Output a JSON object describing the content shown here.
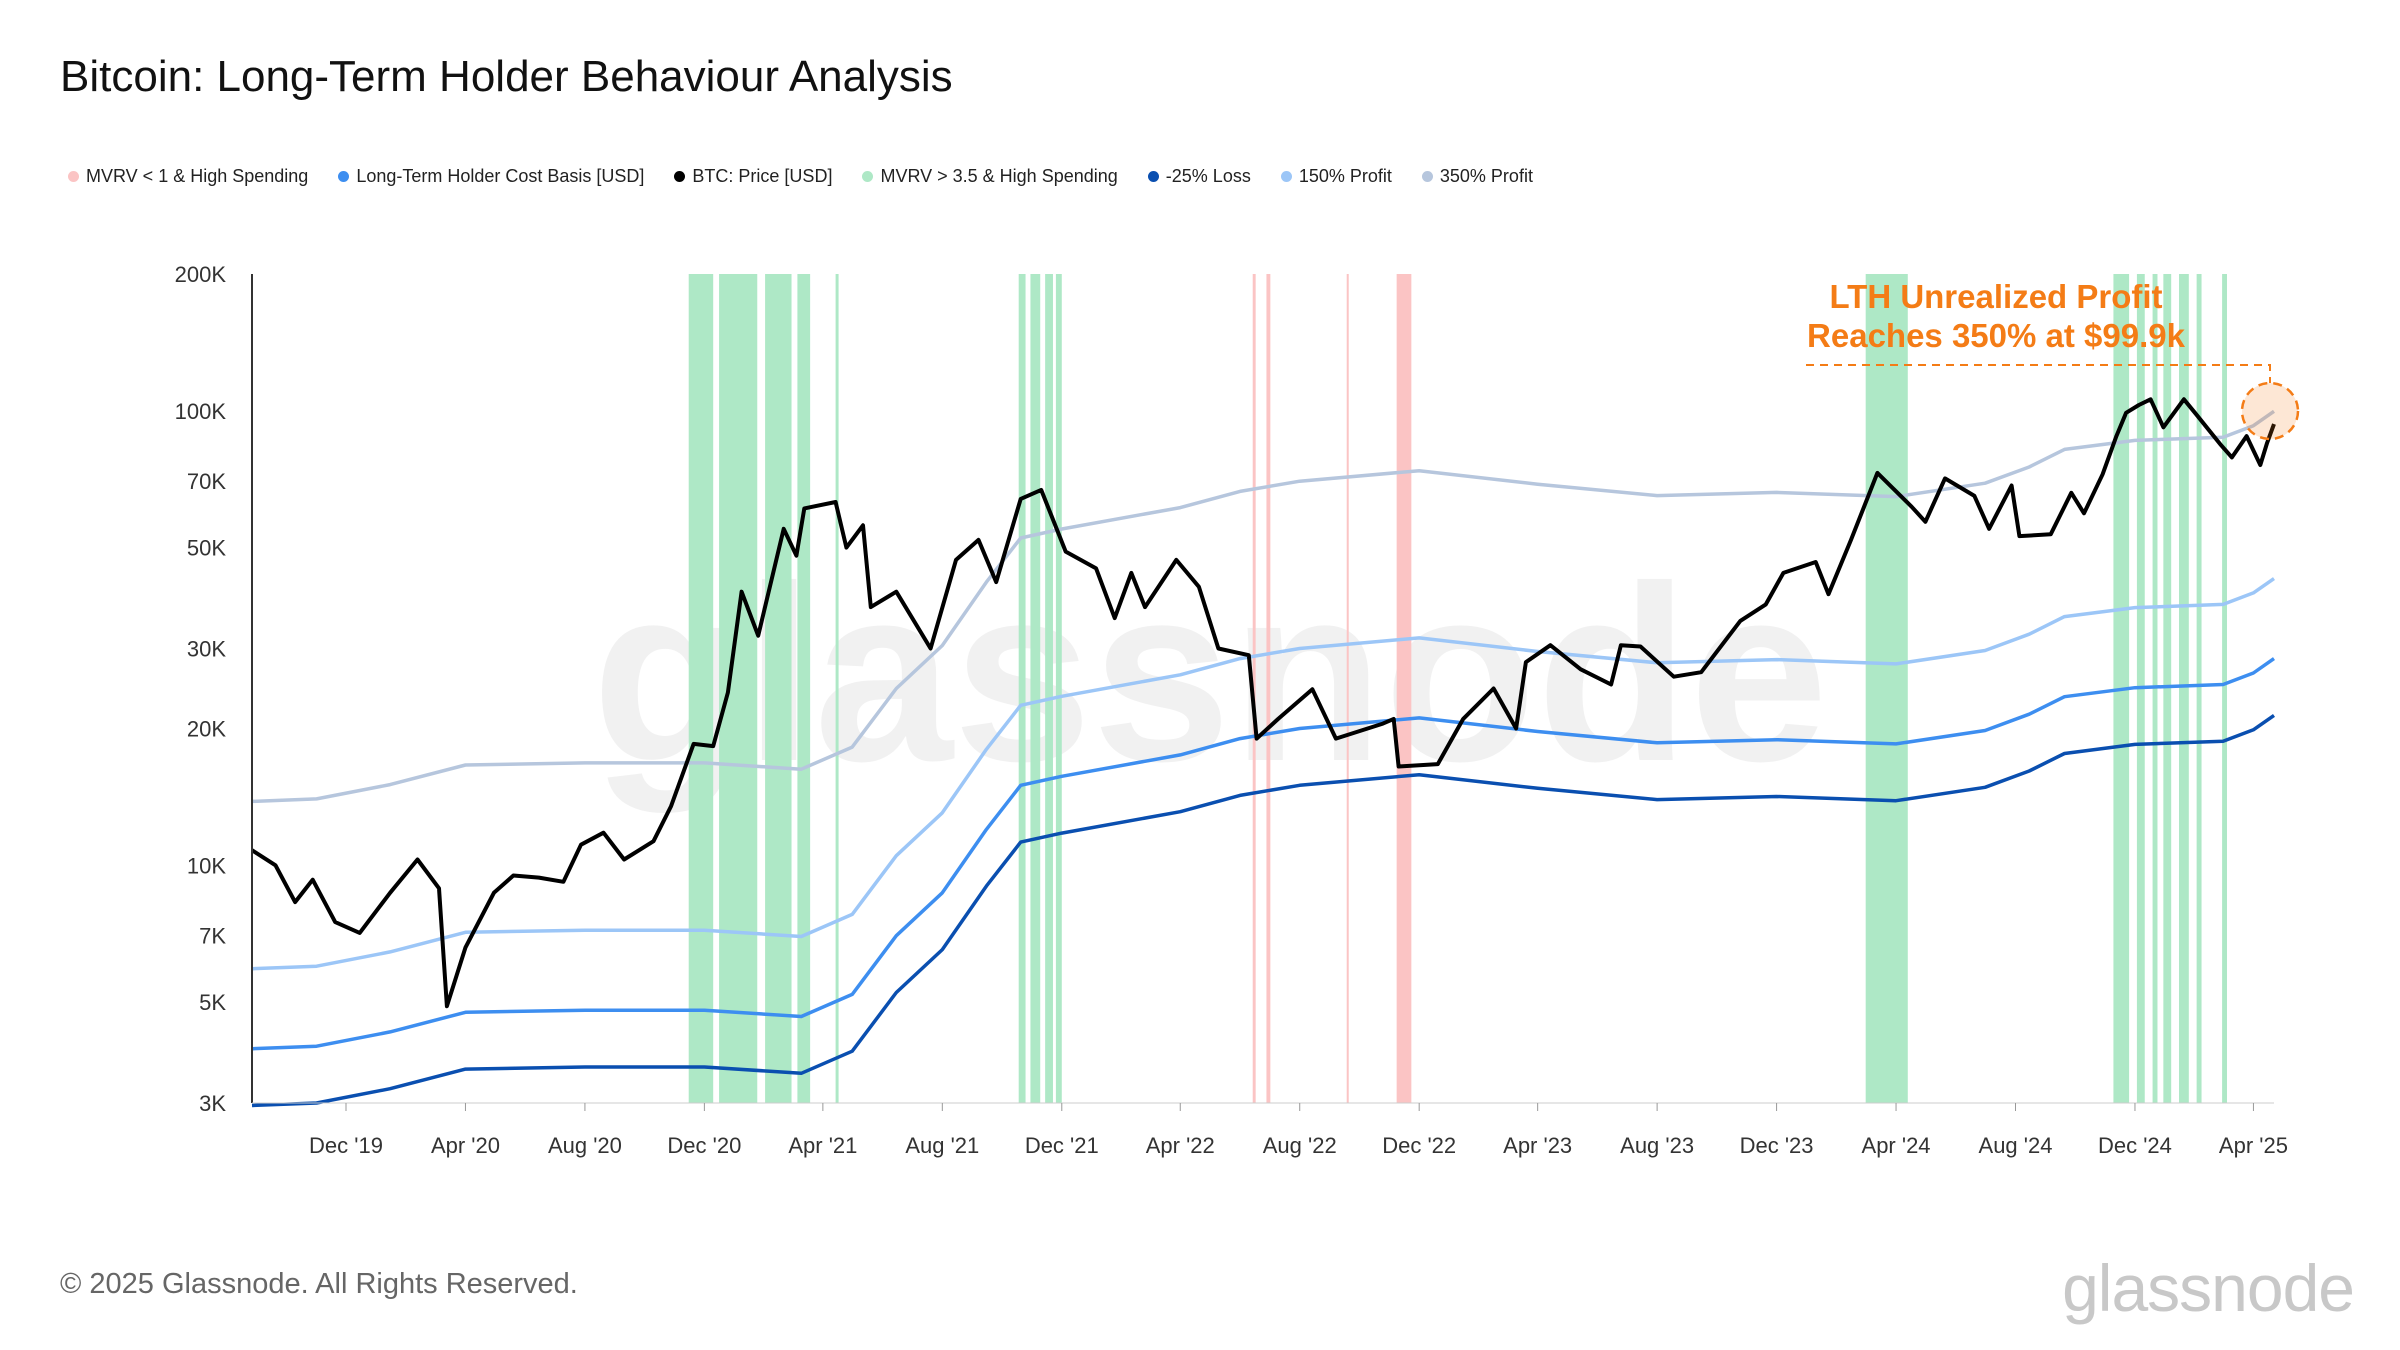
{
  "header": {
    "title": "Bitcoin: Long-Term Holder Behaviour Analysis"
  },
  "legend": [
    {
      "label": "MVRV < 1 & High Spending",
      "color": "#fbc4c4"
    },
    {
      "label": "Long-Term Holder Cost Basis [USD]",
      "color": "#3d8ef0"
    },
    {
      "label": "BTC: Price [USD]",
      "color": "#000000"
    },
    {
      "label": "MVRV > 3.5 & High Spending",
      "color": "#aee8c6"
    },
    {
      "label": "-25% Loss",
      "color": "#0a4fb0"
    },
    {
      "label": "150% Profit",
      "color": "#9cc6f7"
    },
    {
      "label": "350% Profit",
      "color": "#b6c6dd"
    }
  ],
  "annotation": {
    "line1": "LTH Unrealized Profit",
    "line2": "Reaches 350% at $99.9k",
    "color": "#f47c16"
  },
  "watermark": "glassnode",
  "footer": {
    "copyright": "© 2025 Glassnode. All Rights Reserved.",
    "logo": "glassnode"
  },
  "chart_data": {
    "type": "line",
    "title": "Bitcoin: Long-Term Holder Behaviour Analysis",
    "y_scale": "log",
    "ylim": [
      3000,
      200000
    ],
    "xlim": [
      "2019-08-27",
      "2025-04-22"
    ],
    "grid": false,
    "legend_position": "top",
    "y_ticks": [
      {
        "v": 3000,
        "label": "3K"
      },
      {
        "v": 5000,
        "label": "5K"
      },
      {
        "v": 7000,
        "label": "7K"
      },
      {
        "v": 10000,
        "label": "10K"
      },
      {
        "v": 20000,
        "label": "20K"
      },
      {
        "v": 30000,
        "label": "30K"
      },
      {
        "v": 50000,
        "label": "50K"
      },
      {
        "v": 70000,
        "label": "70K"
      },
      {
        "v": 100000,
        "label": "100K"
      },
      {
        "v": 200000,
        "label": "200K"
      }
    ],
    "x_ticks": [
      {
        "d": "2019-12-01",
        "label": "Dec '19"
      },
      {
        "d": "2020-04-01",
        "label": "Apr '20"
      },
      {
        "d": "2020-08-01",
        "label": "Aug '20"
      },
      {
        "d": "2020-12-01",
        "label": "Dec '20"
      },
      {
        "d": "2021-04-01",
        "label": "Apr '21"
      },
      {
        "d": "2021-08-01",
        "label": "Aug '21"
      },
      {
        "d": "2021-12-01",
        "label": "Dec '21"
      },
      {
        "d": "2022-04-01",
        "label": "Apr '22"
      },
      {
        "d": "2022-08-01",
        "label": "Aug '22"
      },
      {
        "d": "2022-12-01",
        "label": "Dec '22"
      },
      {
        "d": "2023-04-01",
        "label": "Apr '23"
      },
      {
        "d": "2023-08-01",
        "label": "Aug '23"
      },
      {
        "d": "2023-12-01",
        "label": "Dec '23"
      },
      {
        "d": "2024-04-01",
        "label": "Apr '24"
      },
      {
        "d": "2024-08-01",
        "label": "Aug '24"
      },
      {
        "d": "2024-12-01",
        "label": "Dec '24"
      },
      {
        "d": "2025-04-01",
        "label": "Apr '25"
      }
    ],
    "cost_basis": {
      "name": "Long-Term Holder Cost Basis [USD]",
      "points": [
        [
          "2019-08-27",
          3950
        ],
        [
          "2019-11-01",
          4000
        ],
        [
          "2020-01-15",
          4300
        ],
        [
          "2020-04-01",
          4750
        ],
        [
          "2020-08-01",
          4800
        ],
        [
          "2020-12-01",
          4800
        ],
        [
          "2021-03-10",
          4650
        ],
        [
          "2021-05-01",
          5200
        ],
        [
          "2021-06-15",
          7000
        ],
        [
          "2021-08-01",
          8700
        ],
        [
          "2021-09-15",
          12000
        ],
        [
          "2021-10-20",
          15000
        ],
        [
          "2021-12-01",
          15700
        ],
        [
          "2022-04-01",
          17500
        ],
        [
          "2022-06-01",
          19000
        ],
        [
          "2022-08-01",
          20000
        ],
        [
          "2022-12-01",
          21100
        ],
        [
          "2023-04-01",
          19700
        ],
        [
          "2023-08-01",
          18600
        ],
        [
          "2023-12-01",
          18900
        ],
        [
          "2024-04-01",
          18500
        ],
        [
          "2024-07-01",
          19800
        ],
        [
          "2024-08-15",
          21500
        ],
        [
          "2024-09-20",
          23500
        ],
        [
          "2024-12-01",
          24600
        ],
        [
          "2025-03-01",
          25000
        ],
        [
          "2025-04-01",
          26500
        ],
        [
          "2025-04-22",
          28500
        ]
      ]
    },
    "bands": [
      {
        "name": "-25% Loss",
        "multiplier_of_cost_basis": 0.75
      },
      {
        "name": "150% Profit",
        "multiplier_of_cost_basis": 1.5
      },
      {
        "name": "350% Profit",
        "multiplier_of_cost_basis": 3.5
      }
    ],
    "price": {
      "name": "BTC: Price [USD]",
      "points": [
        [
          "2019-08-27",
          10800
        ],
        [
          "2019-09-20",
          10000
        ],
        [
          "2019-10-10",
          8300
        ],
        [
          "2019-10-28",
          9300
        ],
        [
          "2019-11-20",
          7500
        ],
        [
          "2019-12-15",
          7100
        ],
        [
          "2020-01-15",
          8700
        ],
        [
          "2020-02-12",
          10300
        ],
        [
          "2020-03-05",
          8900
        ],
        [
          "2020-03-13",
          4900
        ],
        [
          "2020-04-01",
          6600
        ],
        [
          "2020-04-30",
          8700
        ],
        [
          "2020-05-20",
          9500
        ],
        [
          "2020-06-15",
          9400
        ],
        [
          "2020-07-10",
          9200
        ],
        [
          "2020-07-28",
          11100
        ],
        [
          "2020-08-20",
          11800
        ],
        [
          "2020-09-10",
          10300
        ],
        [
          "2020-10-10",
          11300
        ],
        [
          "2020-10-28",
          13500
        ],
        [
          "2020-11-20",
          18500
        ],
        [
          "2020-12-10",
          18300
        ],
        [
          "2020-12-25",
          24000
        ],
        [
          "2021-01-08",
          40000
        ],
        [
          "2021-01-25",
          32000
        ],
        [
          "2021-02-20",
          55000
        ],
        [
          "2021-03-05",
          48000
        ],
        [
          "2021-03-13",
          61000
        ],
        [
          "2021-04-14",
          63000
        ],
        [
          "2021-04-25",
          50000
        ],
        [
          "2021-05-12",
          56000
        ],
        [
          "2021-05-20",
          37000
        ],
        [
          "2021-06-15",
          40000
        ],
        [
          "2021-07-20",
          30000
        ],
        [
          "2021-08-15",
          47000
        ],
        [
          "2021-09-07",
          52000
        ],
        [
          "2021-09-25",
          42000
        ],
        [
          "2021-10-20",
          64000
        ],
        [
          "2021-11-10",
          67000
        ],
        [
          "2021-12-05",
          49000
        ],
        [
          "2022-01-05",
          45000
        ],
        [
          "2022-01-24",
          35000
        ],
        [
          "2022-02-10",
          44000
        ],
        [
          "2022-02-24",
          37000
        ],
        [
          "2022-03-28",
          47000
        ],
        [
          "2022-04-20",
          41000
        ],
        [
          "2022-05-10",
          30000
        ],
        [
          "2022-06-10",
          29000
        ],
        [
          "2022-06-18",
          19000
        ],
        [
          "2022-07-10",
          21000
        ],
        [
          "2022-08-14",
          24400
        ],
        [
          "2022-09-07",
          19000
        ],
        [
          "2022-10-25",
          20500
        ],
        [
          "2022-11-05",
          21000
        ],
        [
          "2022-11-10",
          16500
        ],
        [
          "2022-12-20",
          16700
        ],
        [
          "2023-01-15",
          21000
        ],
        [
          "2023-02-15",
          24500
        ],
        [
          "2023-03-10",
          20000
        ],
        [
          "2023-03-20",
          28000
        ],
        [
          "2023-04-14",
          30500
        ],
        [
          "2023-05-15",
          27000
        ],
        [
          "2023-06-15",
          25000
        ],
        [
          "2023-06-25",
          30500
        ],
        [
          "2023-07-15",
          30300
        ],
        [
          "2023-08-18",
          26000
        ],
        [
          "2023-09-15",
          26600
        ],
        [
          "2023-10-25",
          34500
        ],
        [
          "2023-11-20",
          37500
        ],
        [
          "2023-12-08",
          44000
        ],
        [
          "2024-01-10",
          46500
        ],
        [
          "2024-01-23",
          39500
        ],
        [
          "2024-02-15",
          52000
        ],
        [
          "2024-03-13",
          73000
        ],
        [
          "2024-04-17",
          61500
        ],
        [
          "2024-05-01",
          57000
        ],
        [
          "2024-05-21",
          71000
        ],
        [
          "2024-06-20",
          65000
        ],
        [
          "2024-07-05",
          55000
        ],
        [
          "2024-07-28",
          68500
        ],
        [
          "2024-08-05",
          53000
        ],
        [
          "2024-09-06",
          53500
        ],
        [
          "2024-09-27",
          66000
        ],
        [
          "2024-10-10",
          59500
        ],
        [
          "2024-10-29",
          72500
        ],
        [
          "2024-11-12",
          88000
        ],
        [
          "2024-11-22",
          99000
        ],
        [
          "2024-12-05",
          103000
        ],
        [
          "2024-12-17",
          106000
        ],
        [
          "2024-12-30",
          92000
        ],
        [
          "2025-01-20",
          106000
        ],
        [
          "2025-02-02",
          98000
        ],
        [
          "2025-02-27",
          84000
        ],
        [
          "2025-03-10",
          79000
        ],
        [
          "2025-03-25",
          88000
        ],
        [
          "2025-04-08",
          76000
        ],
        [
          "2025-04-15",
          85000
        ],
        [
          "2025-04-22",
          93500
        ]
      ]
    },
    "shaded_regions": {
      "mvrv_gt_3_5_high_spending": [
        [
          "2020-11-15",
          "2020-12-10"
        ],
        [
          "2020-12-16",
          "2021-01-24"
        ],
        [
          "2021-02-01",
          "2021-02-28"
        ],
        [
          "2021-03-06",
          "2021-03-19"
        ],
        [
          "2021-04-14",
          "2021-04-17"
        ],
        [
          "2021-10-18",
          "2021-10-25"
        ],
        [
          "2021-10-30",
          "2021-11-09"
        ],
        [
          "2021-11-14",
          "2021-11-22"
        ],
        [
          "2021-11-25",
          "2021-12-01"
        ],
        [
          "2024-03-01",
          "2024-04-13"
        ],
        [
          "2024-11-09",
          "2024-11-25"
        ],
        [
          "2024-12-03",
          "2024-12-11"
        ],
        [
          "2024-12-19",
          "2024-12-24"
        ],
        [
          "2024-12-30",
          "2025-01-07"
        ],
        [
          "2025-01-15",
          "2025-01-25"
        ],
        [
          "2025-02-02",
          "2025-02-07"
        ],
        [
          "2025-02-28",
          "2025-03-05"
        ]
      ],
      "mvrv_lt_1_high_spending": [
        [
          "2022-06-14",
          "2022-06-17"
        ],
        [
          "2022-06-28",
          "2022-07-02"
        ],
        [
          "2022-09-18",
          "2022-09-20"
        ],
        [
          "2022-11-08",
          "2022-11-23"
        ]
      ]
    },
    "highlight": {
      "date": "2025-04-22",
      "value": 99900
    }
  }
}
